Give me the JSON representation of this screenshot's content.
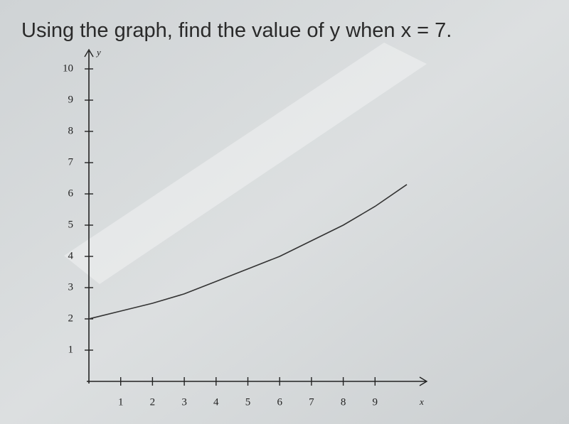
{
  "chart_data": {
    "type": "line",
    "title": "Using the graph, find the value of y when x = 7.",
    "x_label": "x",
    "y_label": "y",
    "x": [
      0,
      1,
      2,
      3,
      4,
      5,
      6,
      7,
      8,
      9,
      10
    ],
    "series": [
      {
        "color": "#333333",
        "values": [
          2,
          2.25,
          2.5,
          2.8,
          3.2,
          3.6,
          4.0,
          4.5,
          5.0,
          5.6,
          6.3
        ]
      }
    ],
    "xlim": [
      0,
      10.6
    ],
    "ylim": [
      0,
      10.4
    ],
    "xticks": [
      1,
      2,
      3,
      4,
      5,
      6,
      7,
      8,
      9
    ],
    "yticks": [
      1,
      2,
      3,
      4,
      5,
      6,
      7,
      8,
      9,
      10
    ]
  }
}
